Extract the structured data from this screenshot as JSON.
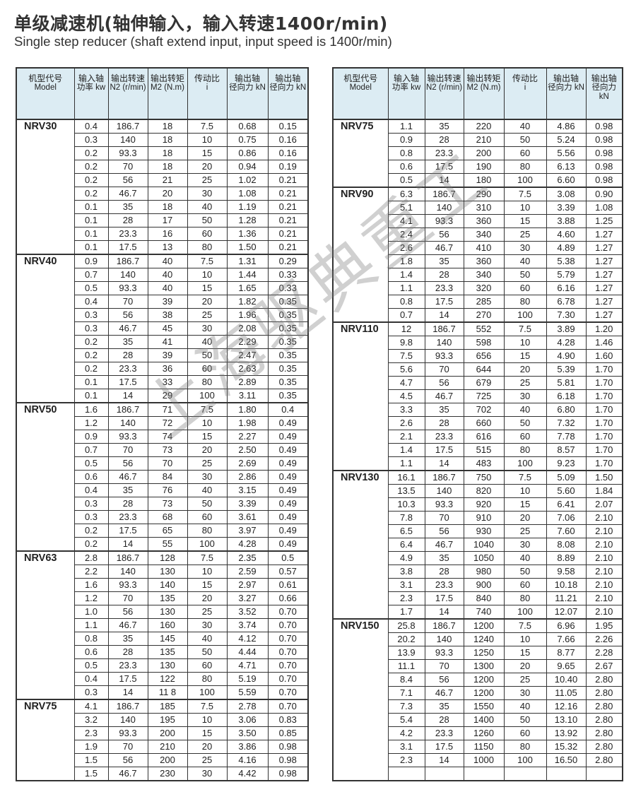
{
  "title": "单级减速机(轴伸输入，输入转速1400r/min)",
  "subtitle": "Single step reducer (shaft extend input,  input speed is 1400r/min)",
  "watermark": "上海驱典重工",
  "header_color": "#dcecf3",
  "columns": [
    {
      "cn": "机型代号",
      "en": "Model"
    },
    {
      "cn": "输入轴",
      "en": "功率 kw"
    },
    {
      "cn": "输出转速",
      "en": "N2 (r/min)"
    },
    {
      "cn": "输出转矩",
      "en": "M2 (N.m)"
    },
    {
      "cn": "传动比",
      "en": "i"
    },
    {
      "cn": "输出轴",
      "en": "径向力 kN"
    },
    {
      "cn": "输出轴",
      "en": "径向力 kN"
    }
  ],
  "left_table": [
    {
      "model": "NRV30",
      "rows": [
        [
          "0.4",
          "186.7",
          "18",
          "7.5",
          "0.68",
          "0.15"
        ],
        [
          "0.3",
          "140",
          "18",
          "10",
          "0.75",
          "0.16"
        ],
        [
          "0.2",
          "93.3",
          "18",
          "15",
          "0.86",
          "0.16"
        ],
        [
          "0.2",
          "70",
          "18",
          "20",
          "0.94",
          "0.19"
        ],
        [
          "0.2",
          "56",
          "21",
          "25",
          "1.02",
          "0.21"
        ],
        [
          "0.2",
          "46.7",
          "20",
          "30",
          "1.08",
          "0.21"
        ],
        [
          "0.1",
          "35",
          "18",
          "40",
          "1.19",
          "0.21"
        ],
        [
          "0.1",
          "28",
          "17",
          "50",
          "1.28",
          "0.21"
        ],
        [
          "0.1",
          "23.3",
          "16",
          "60",
          "1.36",
          "0.21"
        ],
        [
          "0.1",
          "17.5",
          "13",
          "80",
          "1.50",
          "0.21"
        ]
      ]
    },
    {
      "model": "NRV40",
      "rows": [
        [
          "0.9",
          "186.7",
          "40",
          "7.5",
          "1.31",
          "0.29"
        ],
        [
          "0.7",
          "140",
          "40",
          "10",
          "1.44",
          "0.33"
        ],
        [
          "0.5",
          "93.3",
          "40",
          "15",
          "1.65",
          "0.33"
        ],
        [
          "0.4",
          "70",
          "39",
          "20",
          "1.82",
          "0.35"
        ],
        [
          "0.3",
          "56",
          "38",
          "25",
          "1.96",
          "0.35"
        ],
        [
          "0.3",
          "46.7",
          "45",
          "30",
          "2.08",
          "0.35"
        ],
        [
          "0.2",
          "35",
          "41",
          "40",
          "2.29",
          "0.35"
        ],
        [
          "0.2",
          "28",
          "39",
          "50",
          "2.47",
          "0.35"
        ],
        [
          "0.2",
          "23.3",
          "36",
          "60",
          "2.63",
          "0.35"
        ],
        [
          "0.1",
          "17.5",
          "33",
          "80",
          "2.89",
          "0.35"
        ],
        [
          "0.1",
          "14",
          "29",
          "100",
          "3.11",
          "0.35"
        ]
      ]
    },
    {
      "model": "NRV50",
      "rows": [
        [
          "1.6",
          "186.7",
          "71",
          "7.5",
          "1.80",
          "0.4"
        ],
        [
          "1.2",
          "140",
          "72",
          "10",
          "1.98",
          "0.49"
        ],
        [
          "0.9",
          "93.3",
          "74",
          "15",
          "2.27",
          "0.49"
        ],
        [
          "0.7",
          "70",
          "73",
          "20",
          "2.50",
          "0.49"
        ],
        [
          "0.5",
          "56",
          "70",
          "25",
          "2.69",
          "0.49"
        ],
        [
          "0.6",
          "46.7",
          "84",
          "30",
          "2.86",
          "0.49"
        ],
        [
          "0.4",
          "35",
          "76",
          "40",
          "3.15",
          "0.49"
        ],
        [
          "0.3",
          "28",
          "73",
          "50",
          "3.39",
          "0.49"
        ],
        [
          "0.3",
          "23.3",
          "68",
          "60",
          "3.61",
          "0.49"
        ],
        [
          "0.2",
          "17.5",
          "65",
          "80",
          "3.97",
          "0.49"
        ],
        [
          "0.2",
          "14",
          "55",
          "100",
          "4.28",
          "0.49"
        ]
      ]
    },
    {
      "model": "NRV63",
      "rows": [
        [
          "2.8",
          "186.7",
          "128",
          "7.5",
          "2.35",
          "0.5"
        ],
        [
          "2.2",
          "140",
          "130",
          "10",
          "2.59",
          "0.57"
        ],
        [
          "1.6",
          "93.3",
          "140",
          "15",
          "2.97",
          "0.61"
        ],
        [
          "1.2",
          "70",
          "135",
          "20",
          "3.27",
          "0.66"
        ],
        [
          "1.0",
          "56",
          "130",
          "25",
          "3.52",
          "0.70"
        ],
        [
          "1.1",
          "46.7",
          "160",
          "30",
          "3.74",
          "0.70"
        ],
        [
          "0.8",
          "35",
          "145",
          "40",
          "4.12",
          "0.70"
        ],
        [
          "0.6",
          "28",
          "135",
          "50",
          "4.44",
          "0.70"
        ],
        [
          "0.5",
          "23.3",
          "130",
          "60",
          "4.71",
          "0.70"
        ],
        [
          "0.4",
          "17.5",
          "122",
          "80",
          "5.19",
          "0.70"
        ],
        [
          "0.3",
          "14",
          "11 8",
          "100",
          "5.59",
          "0.70"
        ]
      ]
    },
    {
      "model": "NRV75",
      "rows": [
        [
          "4.1",
          "186.7",
          "185",
          "7.5",
          "2.78",
          "0.70"
        ],
        [
          "3.2",
          "140",
          "195",
          "10",
          "3.06",
          "0.83"
        ],
        [
          "2.3",
          "93.3",
          "200",
          "15",
          "3.50",
          "0.85"
        ],
        [
          "1.9",
          "70",
          "210",
          "20",
          "3.86",
          "0.98"
        ],
        [
          "1.5",
          "56",
          "200",
          "25",
          "4.16",
          "0.98"
        ],
        [
          "1.5",
          "46.7",
          "230",
          "30",
          "4.42",
          "0.98"
        ]
      ]
    }
  ],
  "right_table": [
    {
      "model": "NRV75",
      "rows": [
        [
          "1.1",
          "35",
          "220",
          "40",
          "4.86",
          "0.98"
        ],
        [
          "0.9",
          "28",
          "210",
          "50",
          "5.24",
          "0.98"
        ],
        [
          "0.8",
          "23.3",
          "200",
          "60",
          "5.56",
          "0.98"
        ],
        [
          "0.6",
          "17.5",
          "190",
          "80",
          "6.13",
          "0.98"
        ],
        [
          "0.5",
          "14",
          "180",
          "100",
          "6.60",
          "0.98"
        ]
      ]
    },
    {
      "model": "NRV90",
      "rows": [
        [
          "6.3",
          "186.7",
          "290",
          "7.5",
          "3.08",
          "0.90"
        ],
        [
          "5.1",
          "140",
          "310",
          "10",
          "3.39",
          "1.08"
        ],
        [
          "4.1",
          "93.3",
          "360",
          "15",
          "3.88",
          "1.25"
        ],
        [
          "2.4",
          "56",
          "340",
          "25",
          "4.60",
          "1.27"
        ],
        [
          "2.6",
          "46.7",
          "410",
          "30",
          "4.89",
          "1.27"
        ],
        [
          "1.8",
          "35",
          "360",
          "40",
          "5.38",
          "1.27"
        ],
        [
          "1.4",
          "28",
          "340",
          "50",
          "5.79",
          "1.27"
        ],
        [
          "1.1",
          "23.3",
          "320",
          "60",
          "6.16",
          "1.27"
        ],
        [
          "0.8",
          "17.5",
          "285",
          "80",
          "6.78",
          "1.27"
        ],
        [
          "0.7",
          "14",
          "270",
          "100",
          "7.30",
          "1.27"
        ]
      ]
    },
    {
      "model": "NRV110",
      "rows": [
        [
          "12",
          "186.7",
          "552",
          "7.5",
          "3.89",
          "1.20"
        ],
        [
          "9.8",
          "140",
          "598",
          "10",
          "4.28",
          "1.46"
        ],
        [
          "7.5",
          "93.3",
          "656",
          "15",
          "4.90",
          "1.60"
        ],
        [
          "5.6",
          "70",
          "644",
          "20",
          "5.39",
          "1.70"
        ],
        [
          "4.7",
          "56",
          "679",
          "25",
          "5.81",
          "1.70"
        ],
        [
          "4.5",
          "46.7",
          "725",
          "30",
          "6.18",
          "1.70"
        ],
        [
          "3.3",
          "35",
          "702",
          "40",
          "6.80",
          "1.70"
        ],
        [
          "2.6",
          "28",
          "660",
          "50",
          "7.32",
          "1.70"
        ],
        [
          "2.1",
          "23.3",
          "616",
          "60",
          "7.78",
          "1.70"
        ],
        [
          "1.4",
          "17.5",
          "515",
          "80",
          "8.57",
          "1.70"
        ],
        [
          "1.1",
          "14",
          "483",
          "100",
          "9.23",
          "1.70"
        ]
      ]
    },
    {
      "model": "NRV130",
      "rows": [
        [
          "16.1",
          "186.7",
          "750",
          "7.5",
          "5.09",
          "1.50"
        ],
        [
          "13.5",
          "140",
          "820",
          "10",
          "5.60",
          "1.84"
        ],
        [
          "10.3",
          "93.3",
          "920",
          "15",
          "6.41",
          "2.07"
        ],
        [
          "7.8",
          "70",
          "910",
          "20",
          "7.06",
          "2.10"
        ],
        [
          "6.5",
          "56",
          "930",
          "25",
          "7.60",
          "2.10"
        ],
        [
          "6.4",
          "46.7",
          "1040",
          "30",
          "8.08",
          "2.10"
        ],
        [
          "4.9",
          "35",
          "1050",
          "40",
          "8.89",
          "2.10"
        ],
        [
          "3.8",
          "28",
          "980",
          "50",
          "9.58",
          "2.10"
        ],
        [
          "3.1",
          "23.3",
          "900",
          "60",
          "10.18",
          "2.10"
        ],
        [
          "2.3",
          "17.5",
          "840",
          "80",
          "11.21",
          "2.10"
        ],
        [
          "1.7",
          "14",
          "740",
          "100",
          "12.07",
          "2.10"
        ]
      ]
    },
    {
      "model": "NRV150",
      "rows": [
        [
          "25.8",
          "186.7",
          "1200",
          "7.5",
          "6.96",
          "1.95"
        ],
        [
          "20.2",
          "140",
          "1240",
          "10",
          "7.66",
          "2.26"
        ],
        [
          "13.9",
          "93.3",
          "1250",
          "15",
          "8.77",
          "2.28"
        ],
        [
          "11.1",
          "70",
          "1300",
          "20",
          "9.65",
          "2.67"
        ],
        [
          "8.4",
          "56",
          "1200",
          "25",
          "10.40",
          "2.80"
        ],
        [
          "7.1",
          "46.7",
          "1200",
          "30",
          "11.05",
          "2.80"
        ],
        [
          "7.3",
          "35",
          "1550",
          "40",
          "12.16",
          "2.80"
        ],
        [
          "5.4",
          "28",
          "1400",
          "50",
          "13.10",
          "2.80"
        ],
        [
          "4.2",
          "23.3",
          "1260",
          "60",
          "13.92",
          "2.80"
        ],
        [
          "3.1",
          "17.5",
          "1150",
          "80",
          "15.32",
          "2.80"
        ],
        [
          "2.3",
          "14",
          "1000",
          "100",
          "16.50",
          "2.80"
        ],
        [
          "",
          "",
          "",
          "",
          "",
          ""
        ]
      ]
    }
  ]
}
